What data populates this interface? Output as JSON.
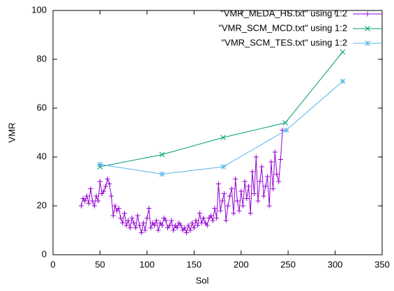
{
  "chart_data": {
    "type": "line",
    "x_label": "Sol",
    "y_label": "VMR",
    "xlim": [
      0,
      350
    ],
    "xticks": [
      0,
      50,
      100,
      150,
      200,
      250,
      300,
      350
    ],
    "ylim": [
      0,
      100
    ],
    "yticks": [
      0,
      20,
      40,
      60,
      80,
      100
    ],
    "legend": "top-right",
    "series": [
      {
        "name": "\"VMR_MEDA_HS.txt\" using 1:2",
        "color": "#9400d3",
        "marker": "plus",
        "x": [
          30,
          32,
          34,
          36,
          38,
          40,
          42,
          44,
          46,
          48,
          50,
          52,
          54,
          56,
          58,
          60,
          62,
          64,
          66,
          68,
          70,
          72,
          74,
          76,
          78,
          80,
          82,
          84,
          86,
          88,
          90,
          92,
          94,
          96,
          98,
          100,
          102,
          104,
          106,
          108,
          110,
          112,
          114,
          116,
          118,
          120,
          122,
          124,
          126,
          128,
          130,
          132,
          134,
          136,
          138,
          140,
          142,
          144,
          146,
          148,
          150,
          152,
          154,
          156,
          158,
          160,
          162,
          164,
          166,
          168,
          170,
          172,
          174,
          176,
          178,
          180,
          182,
          184,
          186,
          188,
          190,
          192,
          194,
          196,
          198,
          200,
          202,
          204,
          206,
          208,
          210,
          212,
          214,
          216,
          218,
          220,
          222,
          224,
          226,
          228,
          230,
          232,
          234,
          236,
          238,
          240,
          242,
          244
        ],
        "values": [
          20,
          23,
          22,
          24,
          21,
          27,
          22,
          20,
          24,
          22,
          30,
          25,
          26,
          28,
          31,
          29,
          24,
          16,
          20,
          18,
          19,
          15,
          13,
          17,
          12,
          14,
          11,
          15,
          13,
          11,
          16,
          12,
          9,
          13,
          10,
          15,
          19,
          11,
          13,
          12,
          14,
          10,
          13,
          12,
          15,
          14,
          11,
          12,
          14,
          10,
          12,
          11,
          13,
          12,
          10,
          11,
          9,
          12,
          10,
          13,
          11,
          14,
          12,
          17,
          13,
          15,
          13,
          12,
          15,
          16,
          14,
          19,
          15,
          29,
          18,
          22,
          25,
          14,
          20,
          24,
          27,
          17,
          31,
          22,
          18,
          26,
          20,
          30,
          23,
          28,
          17,
          34,
          25,
          40,
          22,
          30,
          36,
          24,
          28,
          32,
          20,
          38,
          27,
          42,
          33,
          30,
          39,
          51
        ]
      },
      {
        "name": "\"VMR_SCM_MCD.txt\" using 1:2",
        "color": "#009e73",
        "marker": "cross",
        "x": [
          50,
          116,
          181,
          247,
          308
        ],
        "values": [
          36,
          41,
          48,
          54,
          83
        ]
      },
      {
        "name": "\"VMR_SCM_TES.txt\" using 1:2",
        "color": "#56b4e9",
        "marker": "star",
        "x": [
          50,
          116,
          181,
          248,
          308
        ],
        "values": [
          37,
          33,
          36,
          51,
          71
        ]
      }
    ]
  }
}
